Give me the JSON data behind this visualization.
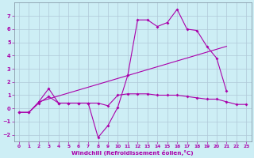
{
  "xlabel": "Windchill (Refroidissement éolien,°C)",
  "background_color": "#cdeef5",
  "grid_color": "#b0c8d8",
  "line_color": "#aa00aa",
  "xlim": [
    -0.5,
    23.5
  ],
  "ylim": [
    -2.5,
    8.0
  ],
  "yticks": [
    -2,
    -1,
    0,
    1,
    2,
    3,
    4,
    5,
    6,
    7
  ],
  "xticks": [
    0,
    1,
    2,
    3,
    4,
    5,
    6,
    7,
    8,
    9,
    10,
    11,
    12,
    13,
    14,
    15,
    16,
    17,
    18,
    19,
    20,
    21,
    22,
    23
  ],
  "line1_x": [
    0,
    1,
    2,
    3,
    4,
    5,
    6,
    7,
    8,
    9,
    10,
    11,
    12,
    13,
    14,
    15,
    16,
    17,
    18,
    19,
    20,
    21
  ],
  "line1_y": [
    -0.3,
    -0.3,
    0.5,
    1.5,
    0.4,
    0.4,
    0.4,
    0.4,
    -2.2,
    -1.3,
    0.1,
    2.5,
    6.7,
    6.7,
    6.2,
    6.5,
    7.5,
    6.0,
    5.9,
    4.7,
    3.8,
    1.3
  ],
  "line2_x": [
    0,
    1,
    2,
    3,
    4,
    5,
    6,
    7,
    8,
    9,
    10,
    11,
    12,
    13,
    14,
    15,
    16,
    17,
    18,
    19,
    20,
    21,
    22,
    23
  ],
  "line2_y": [
    -0.3,
    -0.3,
    0.4,
    0.9,
    0.4,
    0.4,
    0.4,
    0.4,
    0.4,
    0.2,
    1.0,
    1.1,
    1.1,
    1.1,
    1.0,
    1.0,
    1.0,
    0.9,
    0.8,
    0.7,
    0.7,
    0.5,
    0.3,
    0.3
  ],
  "trend_x": [
    2,
    21
  ],
  "trend_y": [
    0.5,
    4.7
  ]
}
